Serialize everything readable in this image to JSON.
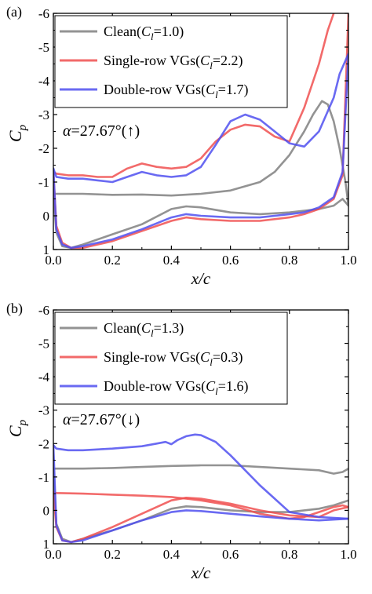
{
  "chart_data": [
    {
      "panel_label": "(a)",
      "type": "line",
      "xlabel": "x/c",
      "ylabel": {
        "base": "C",
        "sub": "p"
      },
      "xlim": [
        0.0,
        1.0
      ],
      "ylim": [
        1,
        -6
      ],
      "x_ticks": [
        "0.0",
        "0.2",
        "0.4",
        "0.6",
        "0.8",
        "1.0"
      ],
      "y_ticks": [
        "-6",
        "-5",
        "-4",
        "-3",
        "-2",
        "-1",
        "0",
        "1"
      ],
      "grid": false,
      "legend_position": "top-right",
      "annotation": {
        "alpha_sym": "α",
        "text": "=27.67°(↑)"
      },
      "series": [
        {
          "name": "Clean(Cl=1.0)",
          "legend": {
            "pre": "Clean(",
            "var": "C",
            "sub": "l",
            "post": "=1.0)"
          },
          "color": "#808080",
          "upper": {
            "x": [
              0.0,
              0.02,
              0.1,
              0.2,
              0.3,
              0.4,
              0.5,
              0.6,
              0.7,
              0.75,
              0.8,
              0.85,
              0.88,
              0.91,
              0.93,
              0.95,
              0.97,
              0.99,
              1.0
            ],
            "y": [
              -0.65,
              -0.65,
              -0.65,
              -0.62,
              -0.63,
              -0.6,
              -0.65,
              -0.75,
              -1.0,
              -1.3,
              -1.8,
              -2.5,
              -3.0,
              -3.4,
              -3.3,
              -2.8,
              -2.0,
              -1.0,
              -0.3
            ]
          },
          "lower": {
            "x": [
              0.0,
              0.01,
              0.03,
              0.06,
              0.1,
              0.2,
              0.3,
              0.4,
              0.45,
              0.5,
              0.6,
              0.7,
              0.8,
              0.9,
              0.95,
              0.98,
              1.0
            ],
            "y": [
              -0.65,
              0.5,
              0.9,
              0.95,
              0.85,
              0.55,
              0.25,
              -0.2,
              -0.28,
              -0.25,
              -0.1,
              -0.05,
              -0.1,
              -0.2,
              -0.3,
              -0.5,
              -0.3
            ]
          }
        },
        {
          "name": "Single-row VGs(Cl=2.2)",
          "legend": {
            "pre": "Single-row VGs(",
            "var": "C",
            "sub": "l",
            "post": "=2.2)"
          },
          "color": "#f05050",
          "upper": {
            "x": [
              0.0,
              0.01,
              0.05,
              0.1,
              0.15,
              0.2,
              0.25,
              0.3,
              0.35,
              0.4,
              0.45,
              0.5,
              0.55,
              0.6,
              0.65,
              0.7,
              0.75,
              0.8,
              0.85,
              0.9,
              0.93,
              0.95
            ],
            "y": [
              -1.3,
              -1.25,
              -1.2,
              -1.2,
              -1.15,
              -1.15,
              -1.4,
              -1.55,
              -1.45,
              -1.4,
              -1.45,
              -1.7,
              -2.2,
              -2.55,
              -2.7,
              -2.65,
              -2.35,
              -2.2,
              -3.2,
              -4.5,
              -5.5,
              -6.0
            ]
          },
          "lower": {
            "x": [
              0.0,
              0.01,
              0.03,
              0.06,
              0.1,
              0.2,
              0.3,
              0.4,
              0.45,
              0.5,
              0.6,
              0.7,
              0.8,
              0.85,
              0.9,
              0.95,
              0.98,
              1.0
            ],
            "y": [
              -1.3,
              0.3,
              0.8,
              0.95,
              0.95,
              0.75,
              0.45,
              0.15,
              0.05,
              0.1,
              0.15,
              0.15,
              0.05,
              -0.05,
              -0.2,
              -0.5,
              -1.2,
              -6.0
            ]
          }
        },
        {
          "name": "Double-row VGs(Cl=1.7)",
          "legend": {
            "pre": "Double-row VGs(",
            "var": "C",
            "sub": "l",
            "post": "=1.7)"
          },
          "color": "#5050f0",
          "upper": {
            "x": [
              0.0,
              0.01,
              0.05,
              0.1,
              0.15,
              0.2,
              0.25,
              0.3,
              0.35,
              0.4,
              0.45,
              0.5,
              0.55,
              0.6,
              0.65,
              0.7,
              0.75,
              0.8,
              0.85,
              0.9,
              0.95,
              0.97,
              0.99,
              1.0
            ],
            "y": [
              -1.4,
              -1.15,
              -1.1,
              -1.1,
              -1.05,
              -1.0,
              -1.15,
              -1.3,
              -1.2,
              -1.15,
              -1.2,
              -1.45,
              -2.1,
              -2.8,
              -3.0,
              -2.85,
              -2.5,
              -2.15,
              -2.05,
              -2.5,
              -3.5,
              -4.2,
              -4.6,
              -4.8
            ]
          },
          "lower": {
            "x": [
              0.0,
              0.01,
              0.03,
              0.06,
              0.1,
              0.2,
              0.3,
              0.4,
              0.45,
              0.5,
              0.6,
              0.7,
              0.8,
              0.85,
              0.9,
              0.95,
              0.98,
              1.0
            ],
            "y": [
              -1.4,
              0.4,
              0.85,
              0.95,
              0.9,
              0.7,
              0.4,
              0.05,
              -0.05,
              0.0,
              0.05,
              0.05,
              -0.05,
              -0.1,
              -0.25,
              -0.55,
              -1.3,
              -4.8
            ]
          }
        }
      ]
    },
    {
      "panel_label": "(b)",
      "type": "line",
      "xlabel": "x/c",
      "ylabel": {
        "base": "C",
        "sub": "p"
      },
      "xlim": [
        0.0,
        1.0
      ],
      "ylim": [
        1,
        -6
      ],
      "x_ticks": [
        "0.0",
        "0.2",
        "0.4",
        "0.6",
        "0.8",
        "1.0"
      ],
      "y_ticks": [
        "-6",
        "-5",
        "-4",
        "-3",
        "-2",
        "-1",
        "0",
        "1"
      ],
      "grid": false,
      "legend_position": "top-right",
      "annotation": {
        "alpha_sym": "α",
        "text": "=27.67°(↓)"
      },
      "series": [
        {
          "name": "Clean(Cl=1.3)",
          "legend": {
            "pre": "Clean(",
            "var": "C",
            "sub": "l",
            "post": "=1.3)"
          },
          "color": "#808080",
          "upper": {
            "x": [
              0.0,
              0.02,
              0.1,
              0.2,
              0.3,
              0.4,
              0.5,
              0.6,
              0.7,
              0.8,
              0.9,
              0.95,
              0.98,
              1.0
            ],
            "y": [
              -1.25,
              -1.25,
              -1.25,
              -1.27,
              -1.3,
              -1.33,
              -1.35,
              -1.35,
              -1.3,
              -1.25,
              -1.2,
              -1.1,
              -1.15,
              -1.25
            ]
          },
          "lower": {
            "x": [
              0.0,
              0.01,
              0.03,
              0.06,
              0.1,
              0.2,
              0.3,
              0.4,
              0.45,
              0.5,
              0.6,
              0.7,
              0.8,
              0.9,
              0.95,
              1.0
            ],
            "y": [
              -1.25,
              0.4,
              0.85,
              0.95,
              0.85,
              0.6,
              0.3,
              -0.05,
              -0.12,
              -0.1,
              0.0,
              0.05,
              0.05,
              -0.05,
              -0.15,
              -0.3
            ]
          }
        },
        {
          "name": "Single-row VGs(Cl=0.3)",
          "legend": {
            "pre": "Single-row VGs(",
            "var": "C",
            "sub": "l",
            "post": "=0.3)"
          },
          "color": "#f05050",
          "upper": {
            "x": [
              0.0,
              0.01,
              0.1,
              0.2,
              0.3,
              0.4,
              0.45,
              0.5,
              0.6,
              0.7,
              0.8,
              0.85,
              0.9,
              0.95,
              0.98,
              1.0
            ],
            "y": [
              -0.55,
              -0.52,
              -0.5,
              -0.47,
              -0.44,
              -0.4,
              -0.35,
              -0.3,
              -0.15,
              0.1,
              0.25,
              0.2,
              0.05,
              -0.1,
              -0.15,
              -0.1
            ]
          },
          "lower": {
            "x": [
              0.0,
              0.01,
              0.03,
              0.06,
              0.1,
              0.2,
              0.3,
              0.4,
              0.45,
              0.5,
              0.6,
              0.7,
              0.8,
              0.9,
              0.95,
              1.0
            ],
            "y": [
              -0.55,
              0.5,
              0.9,
              0.95,
              0.85,
              0.5,
              0.1,
              -0.3,
              -0.38,
              -0.35,
              -0.2,
              0.0,
              0.15,
              0.2,
              0.0,
              -0.1
            ]
          }
        },
        {
          "name": "Double-row VGs(Cl=1.6)",
          "legend": {
            "pre": "Double-row VGs(",
            "var": "C",
            "sub": "l",
            "post": "=1.6)"
          },
          "color": "#5050f0",
          "upper": {
            "x": [
              0.0,
              0.01,
              0.05,
              0.1,
              0.2,
              0.3,
              0.35,
              0.38,
              0.4,
              0.42,
              0.45,
              0.48,
              0.5,
              0.55,
              0.6,
              0.65,
              0.7,
              0.75,
              0.8,
              0.9,
              1.0
            ],
            "y": [
              -1.95,
              -1.85,
              -1.8,
              -1.8,
              -1.85,
              -1.92,
              -2.0,
              -2.05,
              -1.98,
              -2.1,
              -2.22,
              -2.27,
              -2.25,
              -2.05,
              -1.65,
              -1.2,
              -0.75,
              -0.35,
              0.05,
              0.2,
              0.25
            ]
          },
          "lower": {
            "x": [
              0.0,
              0.01,
              0.03,
              0.06,
              0.1,
              0.2,
              0.3,
              0.4,
              0.45,
              0.5,
              0.6,
              0.7,
              0.8,
              0.9,
              1.0
            ],
            "y": [
              -1.95,
              0.45,
              0.9,
              0.95,
              0.9,
              0.6,
              0.3,
              0.05,
              0.0,
              0.02,
              0.1,
              0.18,
              0.25,
              0.3,
              0.25
            ]
          }
        }
      ]
    }
  ]
}
